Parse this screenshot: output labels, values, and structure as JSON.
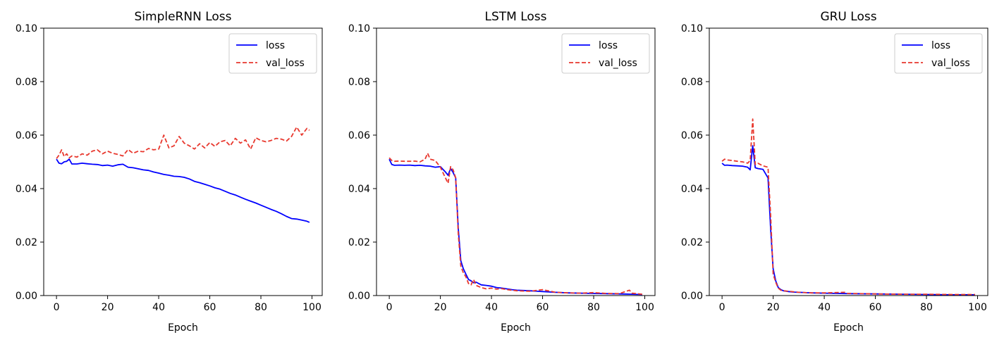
{
  "chart_data": [
    {
      "type": "line",
      "title": "SimpleRNN Loss",
      "xlabel": "Epoch",
      "ylabel": "",
      "xlim": [
        -5,
        104
      ],
      "ylim": [
        0,
        0.1
      ],
      "xticks": [
        "0",
        "20",
        "40",
        "60",
        "80",
        "100"
      ],
      "yticks": [
        "0.00",
        "0.02",
        "0.04",
        "0.06",
        "0.08",
        "0.10"
      ],
      "legend_position": "top-right",
      "grid": false,
      "series": [
        {
          "name": "loss",
          "color": "#0000ff",
          "style": "solid",
          "x": [
            0,
            1,
            2,
            3,
            4,
            5,
            6,
            8,
            10,
            12,
            14,
            16,
            18,
            20,
            22,
            24,
            26,
            28,
            30,
            32,
            34,
            36,
            38,
            40,
            42,
            44,
            46,
            48,
            50,
            52,
            54,
            56,
            58,
            60,
            62,
            64,
            66,
            68,
            70,
            72,
            74,
            76,
            78,
            80,
            82,
            84,
            86,
            88,
            90,
            92,
            94,
            96,
            98,
            99
          ],
          "y": [
            0.051,
            0.0495,
            0.0493,
            0.05,
            0.0502,
            0.051,
            0.0492,
            0.0492,
            0.0495,
            0.0493,
            0.0491,
            0.049,
            0.0486,
            0.0488,
            0.0484,
            0.0489,
            0.0491,
            0.048,
            0.0478,
            0.0474,
            0.047,
            0.0468,
            0.0462,
            0.0458,
            0.0453,
            0.045,
            0.0446,
            0.0445,
            0.0442,
            0.0436,
            0.0427,
            0.0422,
            0.0416,
            0.041,
            0.0403,
            0.0398,
            0.039,
            0.0382,
            0.0376,
            0.0368,
            0.036,
            0.0353,
            0.0346,
            0.0338,
            0.033,
            0.0322,
            0.0315,
            0.0306,
            0.0296,
            0.0288,
            0.0286,
            0.0282,
            0.0278,
            0.0274
          ]
        },
        {
          "name": "val_loss",
          "color": "#e8382e",
          "style": "dashed",
          "x": [
            0,
            1,
            2,
            3,
            4,
            5,
            6,
            8,
            10,
            12,
            14,
            16,
            18,
            20,
            22,
            24,
            26,
            28,
            30,
            32,
            34,
            36,
            38,
            40,
            42,
            44,
            46,
            48,
            50,
            52,
            54,
            56,
            58,
            60,
            62,
            64,
            66,
            68,
            70,
            72,
            74,
            76,
            78,
            80,
            82,
            84,
            86,
            88,
            90,
            92,
            94,
            96,
            98,
            99
          ],
          "y": [
            0.0512,
            0.0525,
            0.0545,
            0.052,
            0.053,
            0.0515,
            0.0522,
            0.0518,
            0.053,
            0.0525,
            0.054,
            0.0545,
            0.053,
            0.054,
            0.0532,
            0.0528,
            0.0522,
            0.0546,
            0.0532,
            0.054,
            0.0538,
            0.055,
            0.0545,
            0.0548,
            0.06,
            0.0552,
            0.056,
            0.0595,
            0.057,
            0.056,
            0.0548,
            0.0568,
            0.0552,
            0.0572,
            0.0558,
            0.0575,
            0.058,
            0.056,
            0.0588,
            0.057,
            0.0582,
            0.0548,
            0.059,
            0.058,
            0.0575,
            0.058,
            0.0588,
            0.0585,
            0.0578,
            0.0595,
            0.063,
            0.06,
            0.0625,
            0.0618
          ]
        }
      ]
    },
    {
      "type": "line",
      "title": "LSTM Loss",
      "xlabel": "Epoch",
      "ylabel": "",
      "xlim": [
        -5,
        104
      ],
      "ylim": [
        0,
        0.1
      ],
      "xticks": [
        "0",
        "20",
        "40",
        "60",
        "80",
        "100"
      ],
      "yticks": [
        "0.00",
        "0.02",
        "0.04",
        "0.06",
        "0.08",
        "0.10"
      ],
      "legend_position": "top-right",
      "grid": false,
      "series": [
        {
          "name": "loss",
          "color": "#0000ff",
          "style": "solid",
          "x": [
            0,
            1,
            2,
            4,
            6,
            8,
            10,
            12,
            14,
            16,
            18,
            20,
            21,
            22,
            23,
            24,
            25,
            26,
            27,
            28,
            29,
            30,
            31,
            32,
            33,
            34,
            36,
            38,
            40,
            42,
            44,
            46,
            48,
            50,
            55,
            60,
            65,
            70,
            75,
            80,
            85,
            90,
            95,
            99
          ],
          "y": [
            0.051,
            0.049,
            0.0487,
            0.0488,
            0.0487,
            0.0488,
            0.0486,
            0.0487,
            0.0485,
            0.0484,
            0.048,
            0.0482,
            0.0472,
            0.0462,
            0.045,
            0.0475,
            0.046,
            0.044,
            0.025,
            0.013,
            0.01,
            0.008,
            0.006,
            0.0055,
            0.0048,
            0.005,
            0.004,
            0.0038,
            0.0035,
            0.003,
            0.0028,
            0.0025,
            0.0022,
            0.002,
            0.0018,
            0.0015,
            0.0012,
            0.001,
            0.0009,
            0.0008,
            0.0007,
            0.0006,
            0.0005,
            0.0004
          ]
        },
        {
          "name": "val_loss",
          "color": "#e8382e",
          "style": "dashed",
          "x": [
            0,
            1,
            2,
            4,
            6,
            8,
            10,
            12,
            14,
            15,
            16,
            18,
            20,
            21,
            22,
            23,
            24,
            25,
            26,
            27,
            28,
            29,
            30,
            31,
            32,
            33,
            34,
            36,
            38,
            40,
            42,
            44,
            46,
            48,
            50,
            55,
            60,
            65,
            70,
            75,
            80,
            85,
            90,
            94,
            95,
            99
          ],
          "y": [
            0.0515,
            0.0505,
            0.0502,
            0.0503,
            0.0502,
            0.0502,
            0.0503,
            0.05,
            0.051,
            0.0532,
            0.051,
            0.0505,
            0.048,
            0.046,
            0.044,
            0.042,
            0.0482,
            0.047,
            0.044,
            0.023,
            0.011,
            0.0085,
            0.007,
            0.0045,
            0.004,
            0.006,
            0.0038,
            0.003,
            0.0025,
            0.0028,
            0.0024,
            0.0026,
            0.0022,
            0.002,
            0.0018,
            0.0016,
            0.0022,
            0.0012,
            0.001,
            0.0009,
            0.0011,
            0.0008,
            0.0007,
            0.002,
            0.0009,
            0.0005
          ]
        }
      ]
    },
    {
      "type": "line",
      "title": "GRU Loss",
      "xlabel": "Epoch",
      "ylabel": "",
      "xlim": [
        -5,
        104
      ],
      "ylim": [
        0,
        0.1
      ],
      "xticks": [
        "0",
        "20",
        "40",
        "60",
        "80",
        "100"
      ],
      "yticks": [
        "0.00",
        "0.02",
        "0.04",
        "0.06",
        "0.08",
        "0.10"
      ],
      "legend_position": "top-right",
      "grid": false,
      "series": [
        {
          "name": "loss",
          "color": "#0000ff",
          "style": "solid",
          "x": [
            0,
            1,
            2,
            4,
            6,
            8,
            10,
            11,
            12,
            13,
            14,
            16,
            18,
            19,
            20,
            21,
            22,
            23,
            24,
            26,
            28,
            30,
            35,
            40,
            50,
            60,
            70,
            80,
            90,
            99
          ],
          "y": [
            0.0495,
            0.0487,
            0.0488,
            0.0486,
            0.0485,
            0.0484,
            0.048,
            0.047,
            0.056,
            0.0478,
            0.0475,
            0.0472,
            0.044,
            0.025,
            0.01,
            0.0055,
            0.003,
            0.0022,
            0.0018,
            0.0015,
            0.0013,
            0.0012,
            0.001,
            0.0009,
            0.0007,
            0.0006,
            0.0005,
            0.0004,
            0.0003,
            0.0003
          ]
        },
        {
          "name": "val_loss",
          "color": "#e8382e",
          "style": "dashed",
          "x": [
            0,
            1,
            2,
            4,
            6,
            8,
            10,
            11,
            12,
            13,
            14,
            16,
            18,
            19,
            20,
            21,
            22,
            23,
            24,
            26,
            28,
            30,
            35,
            40,
            48,
            49,
            50,
            60,
            70,
            80,
            90,
            99
          ],
          "y": [
            0.0502,
            0.051,
            0.0507,
            0.0505,
            0.0502,
            0.05,
            0.0495,
            0.0505,
            0.066,
            0.049,
            0.0495,
            0.0485,
            0.048,
            0.03,
            0.008,
            0.005,
            0.0028,
            0.002,
            0.0018,
            0.0016,
            0.0014,
            0.0012,
            0.001,
            0.001,
            0.0012,
            0.0008,
            0.0008,
            0.0006,
            0.0005,
            0.0005,
            0.0004,
            0.0004
          ]
        }
      ]
    }
  ]
}
